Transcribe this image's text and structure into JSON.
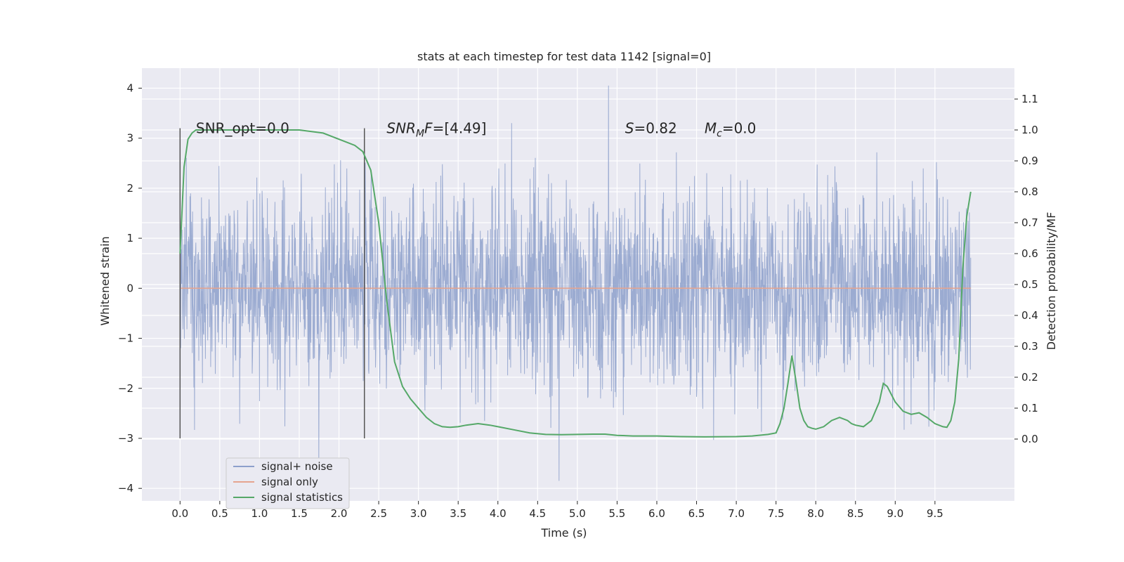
{
  "chart_data": {
    "type": "line",
    "title": "stats at each timestep for test data 1142 [signal=0]",
    "xlabel": "Time (s)",
    "ylabel": "Whitened strain",
    "ylabel_right": "Detection probability/MF",
    "xlim": [
      -0.48,
      10.5
    ],
    "ylim": [
      -4.25,
      4.4
    ],
    "ylim_right": [
      -0.2,
      1.2
    ],
    "xticks": [
      0.0,
      0.5,
      1.0,
      1.5,
      2.0,
      2.5,
      3.0,
      3.5,
      4.0,
      4.5,
      5.0,
      5.5,
      6.0,
      6.5,
      7.0,
      7.5,
      8.0,
      8.5,
      9.0,
      9.5
    ],
    "xtick_labels": [
      "0.0",
      "0.5",
      "1.0",
      "1.5",
      "2.0",
      "2.5",
      "3.0",
      "3.5",
      "4.0",
      "4.5",
      "5.0",
      "5.5",
      "6.0",
      "6.5",
      "7.0",
      "7.5",
      "8.0",
      "8.5",
      "9.0",
      "9.5"
    ],
    "yticks": [
      -4,
      -3,
      -2,
      -1,
      0,
      1,
      2,
      3,
      4
    ],
    "ytick_labels": [
      "−4",
      "−3",
      "−2",
      "−1",
      "0",
      "1",
      "2",
      "3",
      "4"
    ],
    "yticks_right": [
      0.0,
      0.1,
      0.2,
      0.3,
      0.4,
      0.5,
      0.6,
      0.7,
      0.8,
      0.9,
      1.0,
      1.1
    ],
    "ytick_labels_right": [
      "0.0",
      "0.1",
      "0.2",
      "0.3",
      "0.4",
      "0.5",
      "0.6",
      "0.7",
      "0.8",
      "0.9",
      "1.0",
      "1.1"
    ],
    "grid": true,
    "legend_position": "lower-left",
    "annotations": [
      {
        "text": "SNR_opt=0.0",
        "x": 0.2,
        "y": 3.2
      },
      {
        "text": "SNR_MF=[4.49]",
        "x": 2.6,
        "y": 3.2
      },
      {
        "text": "S=0.82",
        "x": 5.6,
        "y": 3.2
      },
      {
        "text": "M_c=0.0",
        "x": 6.6,
        "y": 3.2
      }
    ],
    "vlines": [
      {
        "x": 0.0,
        "ymin": -3.0,
        "ymax": 3.2
      },
      {
        "x": 2.32,
        "ymin": -3.0,
        "ymax": 3.2
      }
    ],
    "series": [
      {
        "name": "signal+ noise",
        "axis": "left",
        "color": "#8da0cb",
        "description": "whitened noise, amplitude ~N(0,1) sampled densely from 0 to ~9.95 s",
        "x_range": [
          0.0,
          9.95
        ],
        "std": 1.0,
        "peaks": [
          4.05,
          -3.85
        ]
      },
      {
        "name": "signal only",
        "axis": "left",
        "color": "#e5a48f",
        "x": [
          0.0,
          9.95
        ],
        "y": [
          0.0,
          0.0
        ]
      },
      {
        "name": "signal statistics",
        "axis": "right",
        "color": "#55a868",
        "x": [
          0.0,
          0.05,
          0.1,
          0.15,
          0.2,
          0.4,
          0.8,
          1.2,
          1.5,
          1.8,
          2.0,
          2.1,
          2.2,
          2.3,
          2.4,
          2.5,
          2.6,
          2.7,
          2.8,
          2.9,
          3.0,
          3.1,
          3.2,
          3.3,
          3.4,
          3.5,
          3.6,
          3.75,
          3.9,
          4.0,
          4.2,
          4.4,
          4.6,
          4.8,
          5.0,
          5.2,
          5.35,
          5.5,
          5.7,
          6.0,
          6.3,
          6.6,
          7.0,
          7.2,
          7.4,
          7.5,
          7.55,
          7.6,
          7.65,
          7.7,
          7.75,
          7.8,
          7.85,
          7.9,
          7.95,
          8.0,
          8.1,
          8.2,
          8.3,
          8.4,
          8.45,
          8.5,
          8.6,
          8.7,
          8.8,
          8.85,
          8.9,
          9.0,
          9.1,
          9.2,
          9.3,
          9.4,
          9.5,
          9.6,
          9.65,
          9.7,
          9.75,
          9.8,
          9.85,
          9.9,
          9.95
        ],
        "y": [
          0.6,
          0.88,
          0.97,
          0.99,
          1.0,
          1.0,
          1.0,
          1.0,
          1.0,
          0.99,
          0.97,
          0.96,
          0.95,
          0.93,
          0.87,
          0.7,
          0.45,
          0.25,
          0.17,
          0.13,
          0.1,
          0.07,
          0.05,
          0.04,
          0.038,
          0.04,
          0.045,
          0.05,
          0.045,
          0.04,
          0.03,
          0.02,
          0.015,
          0.014,
          0.015,
          0.016,
          0.016,
          0.012,
          0.01,
          0.01,
          0.008,
          0.007,
          0.008,
          0.01,
          0.015,
          0.02,
          0.05,
          0.1,
          0.18,
          0.27,
          0.19,
          0.1,
          0.06,
          0.04,
          0.035,
          0.032,
          0.04,
          0.06,
          0.07,
          0.06,
          0.05,
          0.045,
          0.04,
          0.06,
          0.12,
          0.18,
          0.17,
          0.12,
          0.09,
          0.08,
          0.085,
          0.07,
          0.05,
          0.04,
          0.038,
          0.06,
          0.12,
          0.26,
          0.55,
          0.72,
          0.8
        ]
      }
    ]
  }
}
